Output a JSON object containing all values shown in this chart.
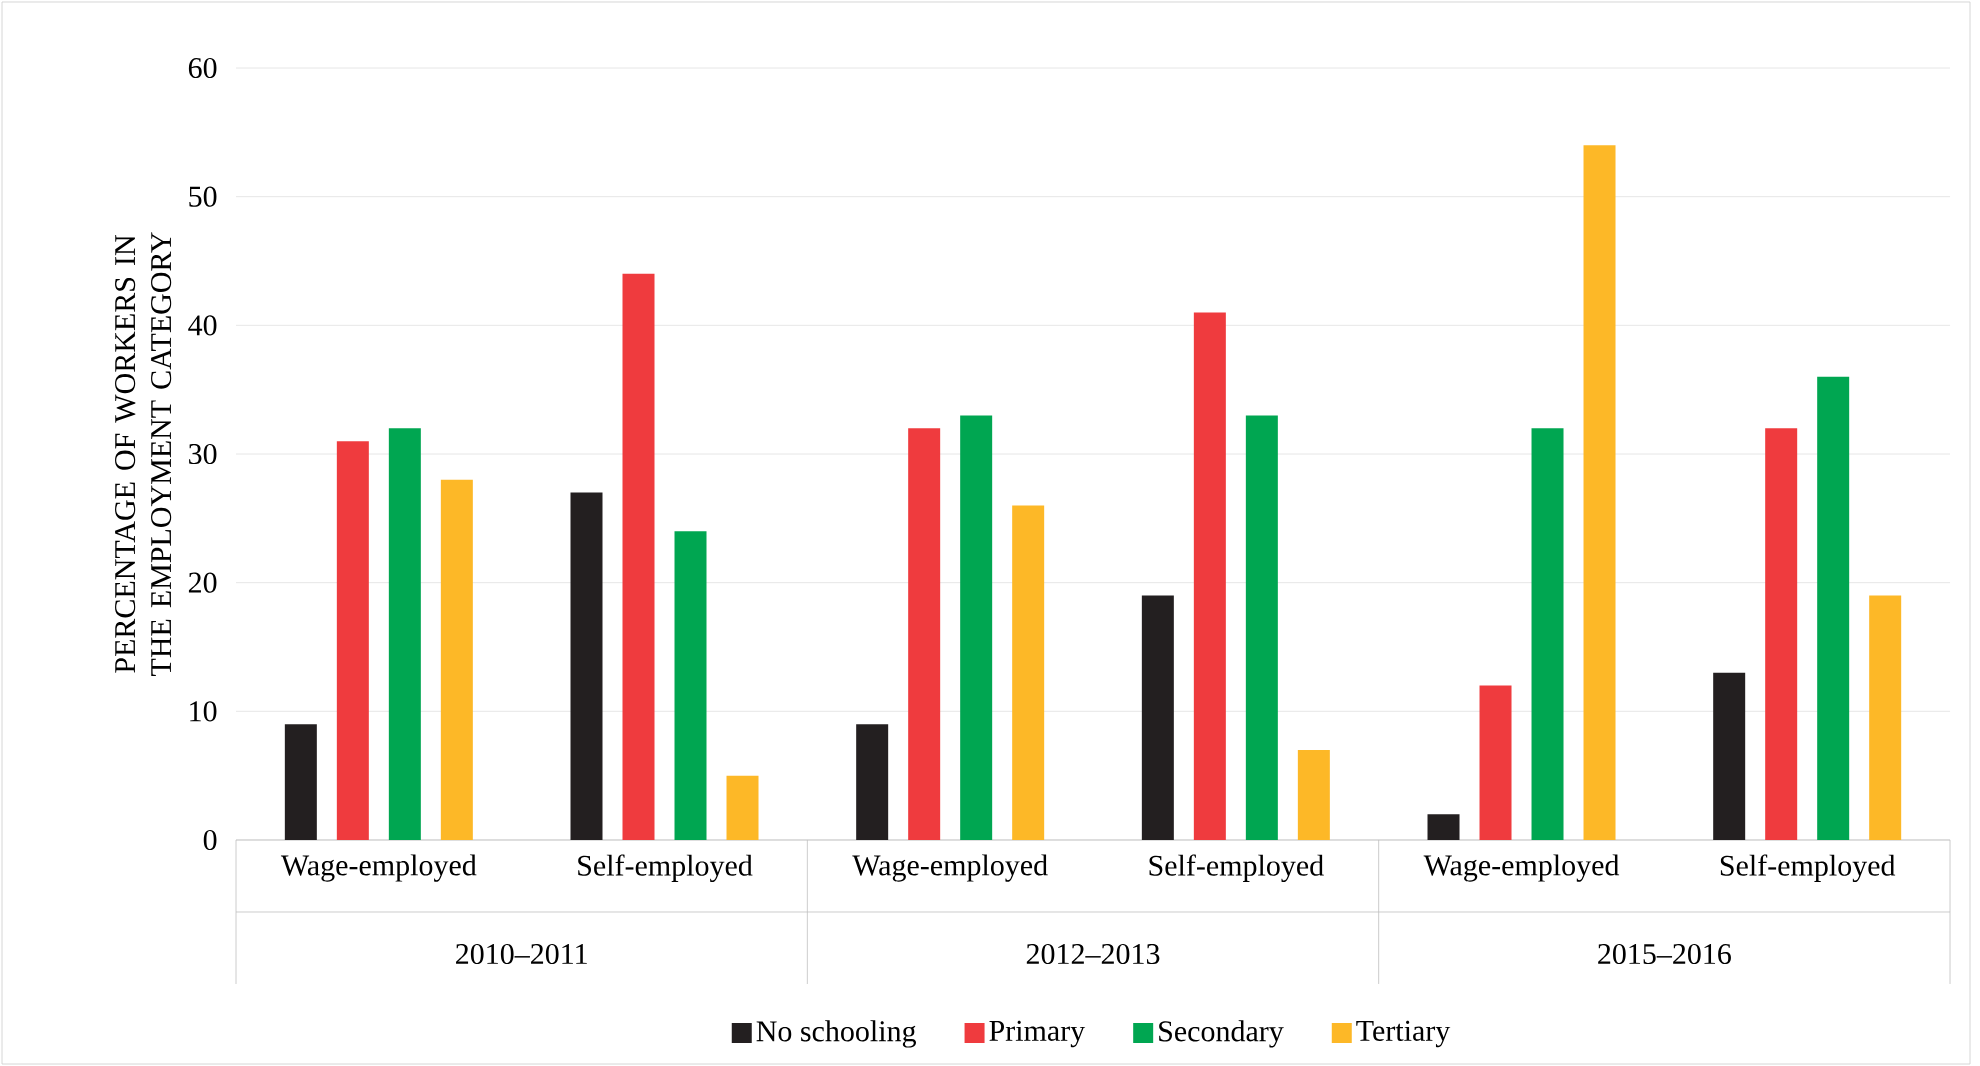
{
  "chart_data": {
    "type": "bar",
    "ylabel": "PERCENTAGE OF WORKERS IN THE EMPLOYMENT CATEGORY",
    "categories": [
      "Wage-employed",
      "Self-employed",
      "Wage-employed",
      "Self-employed",
      "Wage-employed",
      "Self-employed"
    ],
    "annotations": [
      "2010–2011",
      "2012–2013",
      "2015–2016"
    ],
    "series": [
      {
        "name": "No schooling",
        "color": "#231f20",
        "values": [
          9,
          27,
          9,
          19,
          2,
          13
        ]
      },
      {
        "name": "Primary",
        "color": "#ef3b3e",
        "values": [
          31,
          44,
          32,
          41,
          12,
          32
        ]
      },
      {
        "name": "Secondary",
        "color": "#00a651",
        "values": [
          32,
          24,
          33,
          33,
          32,
          36
        ]
      },
      {
        "name": "Tertiary",
        "color": "#fdb827",
        "values": [
          28,
          5,
          26,
          7,
          54,
          19
        ]
      }
    ],
    "ylim": [
      0,
      60
    ],
    "yticks": [
      0,
      10,
      20,
      30,
      40,
      50,
      60
    ],
    "grid": "y",
    "legend": "bottom"
  }
}
